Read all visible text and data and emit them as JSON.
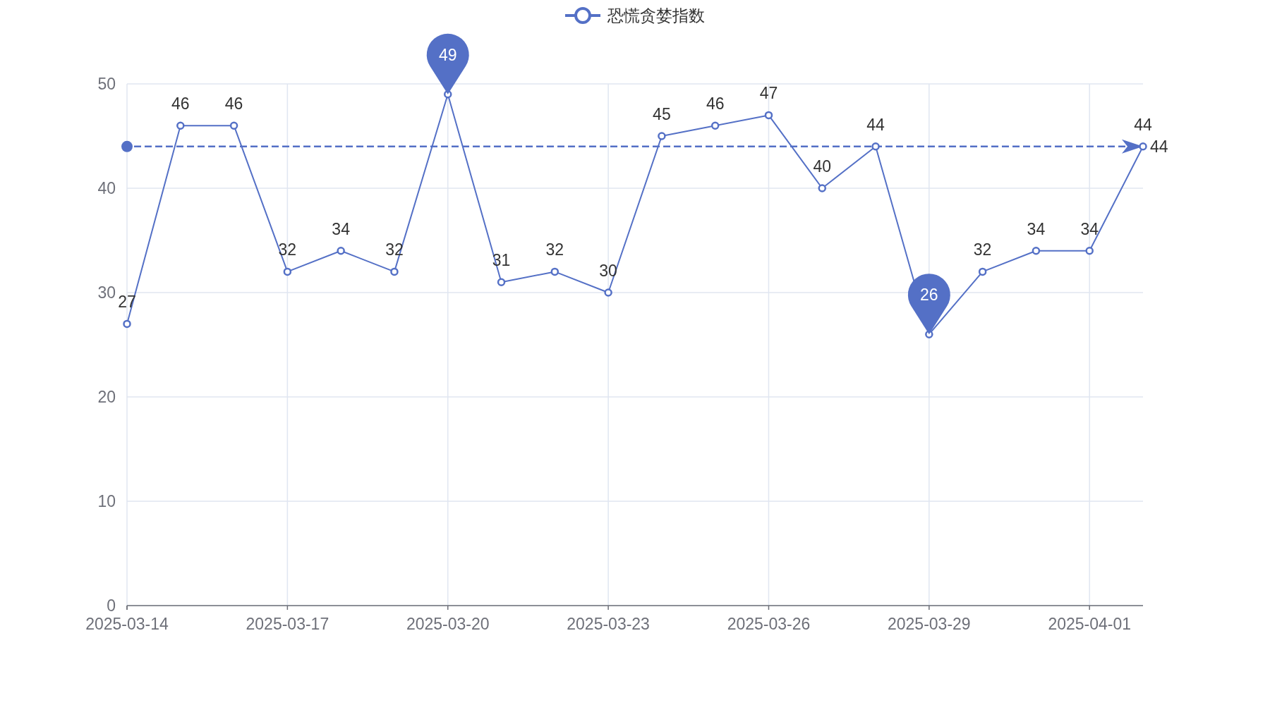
{
  "chart_data": {
    "type": "line",
    "legend": "top",
    "marker": "circle",
    "grid": true,
    "x": [
      "2025-03-14",
      "2025-03-15",
      "2025-03-16",
      "2025-03-17",
      "2025-03-18",
      "2025-03-19",
      "2025-03-20",
      "2025-03-21",
      "2025-03-22",
      "2025-03-23",
      "2025-03-24",
      "2025-03-25",
      "2025-03-26",
      "2025-03-27",
      "2025-03-28",
      "2025-03-29",
      "2025-03-30",
      "2025-03-31",
      "2025-04-01",
      "2025-04-02"
    ],
    "series": [
      {
        "name": "恐慌贪婪指数",
        "color": "#5470c6",
        "values": [
          27,
          46,
          46,
          32,
          34,
          32,
          49,
          31,
          32,
          30,
          45,
          46,
          47,
          40,
          44,
          26,
          32,
          34,
          34,
          44
        ],
        "value_labels": [
          "27",
          "46",
          "46",
          "32",
          "34",
          "32",
          null,
          "31",
          "32",
          "30",
          "45",
          "46",
          "47",
          "40",
          "44",
          null,
          "32",
          "34",
          "34",
          "44"
        ]
      }
    ],
    "xlim": [
      "2025-03-14",
      "2025-04-02"
    ],
    "xticks": [
      "2025-03-14",
      "2025-03-17",
      "2025-03-20",
      "2025-03-23",
      "2025-03-26",
      "2025-03-29",
      "2025-04-01"
    ],
    "ylim": [
      0,
      50
    ],
    "yticks": [
      0,
      10,
      20,
      30,
      40,
      50
    ],
    "ref_lines": [
      {
        "axis": "y",
        "value": 44,
        "label": "44",
        "line_style": "dashed",
        "color": "#5470c6"
      }
    ],
    "annotations": [
      {
        "text": "49",
        "x": "2025-03-20",
        "y": 49
      },
      {
        "text": "26",
        "x": "2025-03-29",
        "y": 26
      }
    ]
  }
}
